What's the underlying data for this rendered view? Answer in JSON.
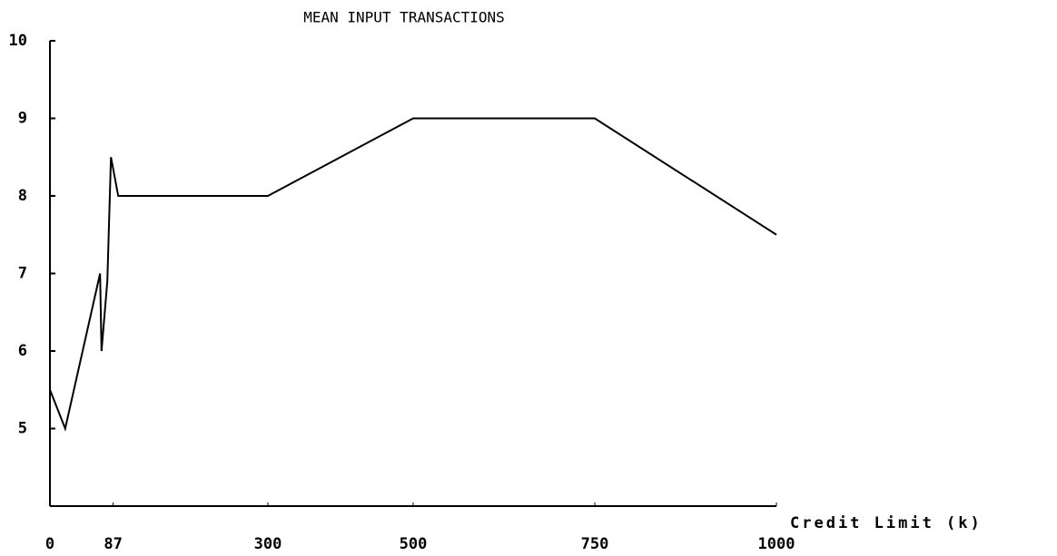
{
  "chart_data": {
    "type": "line",
    "title": "MEAN INPUT TRANSACTIONS",
    "x_label": "Credit Limit (k)",
    "x": [
      0,
      21,
      69,
      71,
      79,
      84,
      94,
      300,
      500,
      750,
      1000
    ],
    "values": [
      5.5,
      5.0,
      7.0,
      6.0,
      6.9,
      8.5,
      8.0,
      8.0,
      9.0,
      9.0,
      7.5
    ],
    "color": "#000000",
    "xlim": [
      0,
      1000
    ],
    "xticks": [
      0,
      87,
      300,
      500,
      750,
      1000
    ],
    "ylim": [
      4,
      10
    ],
    "yticks": [
      5,
      6,
      7,
      8,
      9,
      10
    ],
    "grid": false
  }
}
